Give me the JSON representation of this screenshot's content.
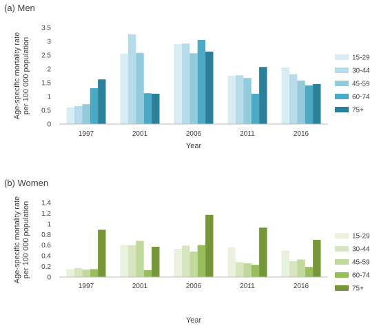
{
  "chart_data": [
    {
      "type": "bar",
      "title": "(a) Men",
      "xlabel": "Year",
      "ylabel": "Age-specific mortality rate per 100 000 population",
      "ylabel_lines": [
        "Age-specific mortality rate",
        "per 100 000 population"
      ],
      "categories": [
        "1997",
        "2001",
        "2006",
        "2011",
        "2016"
      ],
      "ylim": [
        0,
        3.5
      ],
      "yticks": [
        "0",
        "0.5",
        "1",
        "1.5",
        "2",
        "2.5",
        "3",
        "3.5"
      ],
      "legend_position": "right",
      "grid": false,
      "series": [
        {
          "name": "15-29",
          "color": "#d7ecf3",
          "values": [
            0.6,
            2.55,
            2.9,
            1.75,
            2.05
          ]
        },
        {
          "name": "30-44",
          "color": "#b7dbe8",
          "values": [
            0.65,
            3.25,
            2.92,
            1.77,
            1.8
          ]
        },
        {
          "name": "45-59",
          "color": "#93cbdc",
          "values": [
            0.72,
            2.58,
            2.57,
            1.67,
            1.58
          ]
        },
        {
          "name": "60-74",
          "color": "#4aa9c4",
          "values": [
            1.3,
            1.12,
            3.05,
            1.1,
            1.4
          ]
        },
        {
          "name": "75+",
          "color": "#2b7f98",
          "values": [
            1.62,
            1.1,
            2.63,
            2.07,
            1.45
          ]
        }
      ]
    },
    {
      "type": "bar",
      "title": "(b) Women",
      "xlabel": "Year",
      "ylabel": "Age-specific mortality rate per 100 000 population",
      "ylabel_lines": [
        "Age-specific mortality rate",
        "per 100 000 population"
      ],
      "categories": [
        "1997",
        "2001",
        "2006",
        "2011",
        "2016"
      ],
      "ylim": [
        0,
        1.4
      ],
      "yticks": [
        "0",
        "0.2",
        "0.4",
        "0.6",
        "0.8",
        "1",
        "1.2",
        "1.4"
      ],
      "legend_position": "right",
      "grid": false,
      "series": [
        {
          "name": "15-29",
          "color": "#eaf1dd",
          "values": [
            0.15,
            0.6,
            0.53,
            0.56,
            0.5
          ]
        },
        {
          "name": "30-44",
          "color": "#d7e6be",
          "values": [
            0.17,
            0.6,
            0.59,
            0.28,
            0.3
          ]
        },
        {
          "name": "45-59",
          "color": "#c2d99e",
          "values": [
            0.14,
            0.68,
            0.48,
            0.26,
            0.33
          ]
        },
        {
          "name": "60-74",
          "color": "#98bd5a",
          "values": [
            0.15,
            0.13,
            0.6,
            0.23,
            0.19
          ]
        },
        {
          "name": "75+",
          "color": "#76963a",
          "values": [
            0.89,
            0.57,
            1.17,
            0.93,
            0.7
          ]
        }
      ]
    }
  ]
}
